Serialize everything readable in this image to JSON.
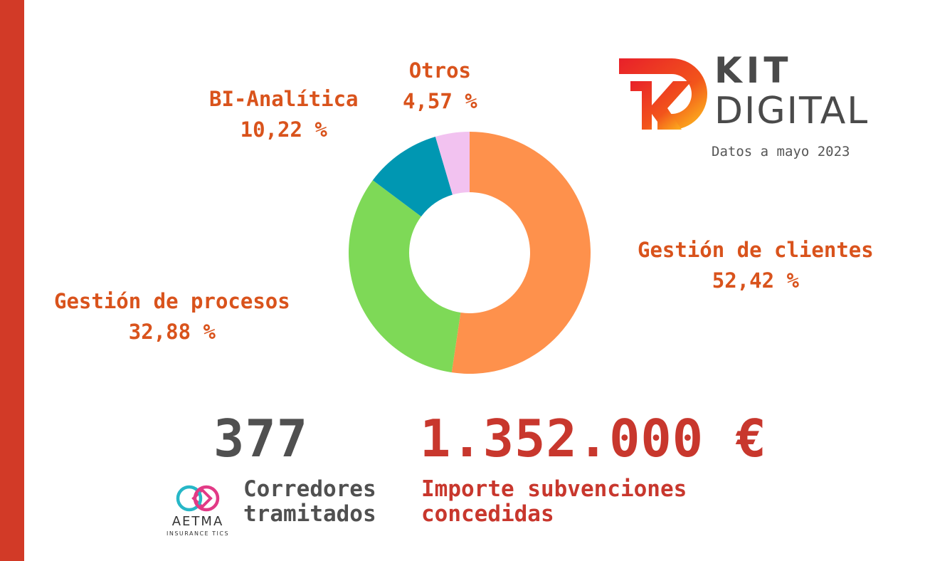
{
  "chart_data": {
    "type": "pie",
    "style": "donut",
    "slices": [
      {
        "label": "Gestión de clientes",
        "value": 52.42,
        "display": "52,42 %",
        "color": "#fe914c"
      },
      {
        "label": "Gestión de procesos",
        "value": 32.88,
        "display": "32,88 %",
        "color": "#7ed957"
      },
      {
        "label": "BI-Analítica",
        "value": 10.22,
        "display": "10,22 %",
        "color": "#0097b2"
      },
      {
        "label": "Otros",
        "value": 4.57,
        "display": "4,57 %",
        "color": "#f2c2f0"
      }
    ],
    "label_color": "#d9531c"
  },
  "brand": {
    "kit_line1": "KIT",
    "kit_line2": "DIGITAL",
    "date_note": "Datos a mayo 2023",
    "accent": "#d23a27"
  },
  "stats": {
    "brokers_count": "377",
    "brokers_caption_1": "Corredores",
    "brokers_caption_2": "tramitados",
    "amount": "1.352.000 €",
    "amount_caption_1": "Importe subvenciones",
    "amount_caption_2": "concedidas"
  },
  "aetma": {
    "name": "AETMA",
    "sub": "INSURANCE TICS"
  }
}
